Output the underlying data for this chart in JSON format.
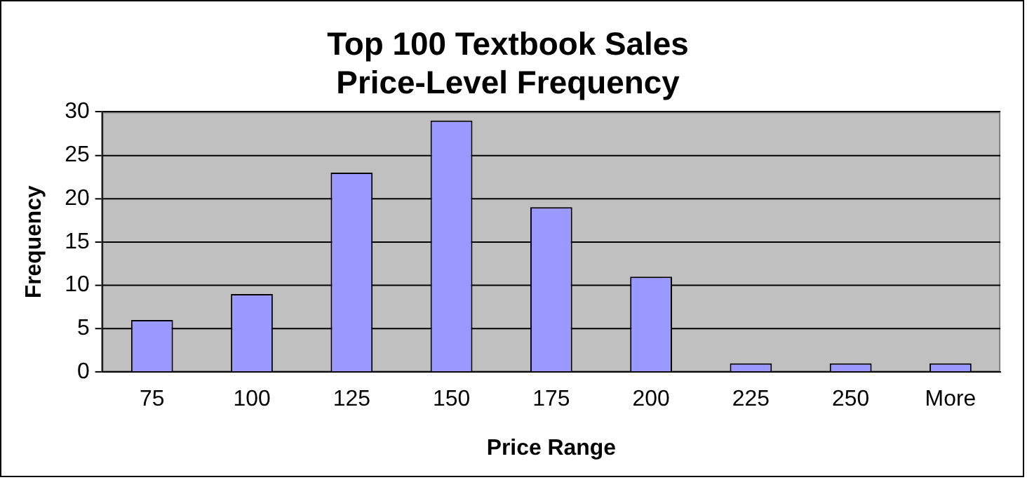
{
  "chart_data": {
    "type": "bar",
    "title": "Top 100 Textbook Sales\nPrice-Level Frequency",
    "xlabel": "Price Range",
    "ylabel": "Frequency",
    "categories": [
      "75",
      "100",
      "125",
      "150",
      "175",
      "200",
      "225",
      "250",
      "More"
    ],
    "values": [
      6,
      9,
      23,
      29,
      19,
      11,
      1,
      1,
      1
    ],
    "color": "#9999ff",
    "ylim": [
      0,
      30
    ],
    "yticks": [
      0,
      5,
      10,
      15,
      20,
      25,
      30
    ],
    "grid": "y",
    "legend": false
  }
}
